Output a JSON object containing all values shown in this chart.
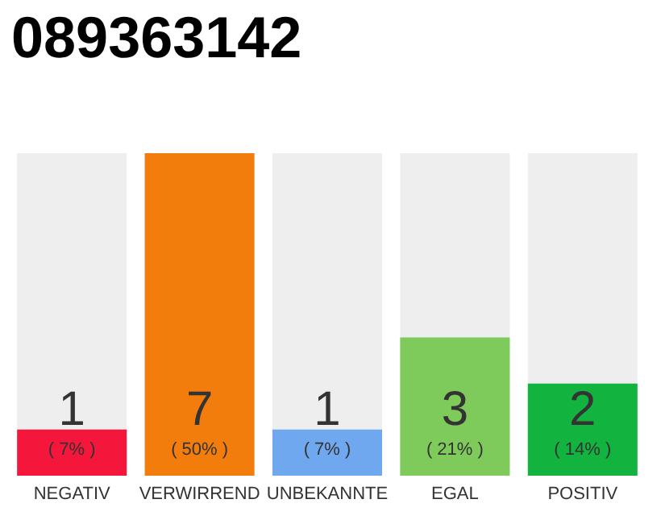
{
  "chart_data": {
    "type": "bar",
    "title": "089363142",
    "categories": [
      "NEGATIV",
      "VERWIRREND",
      "UNBEKANNTE",
      "EGAL",
      "POSITIV"
    ],
    "values": [
      1,
      7,
      1,
      3,
      2
    ],
    "colors": [
      "#f5163b",
      "#f27d0c",
      "#6fa8ee",
      "#7ecb5c",
      "#12b33e"
    ],
    "data_labels": true,
    "annotations": [
      "( 7% )",
      "( 50% )",
      "( 7% )",
      "( 21% )",
      "( 14% )"
    ]
  }
}
